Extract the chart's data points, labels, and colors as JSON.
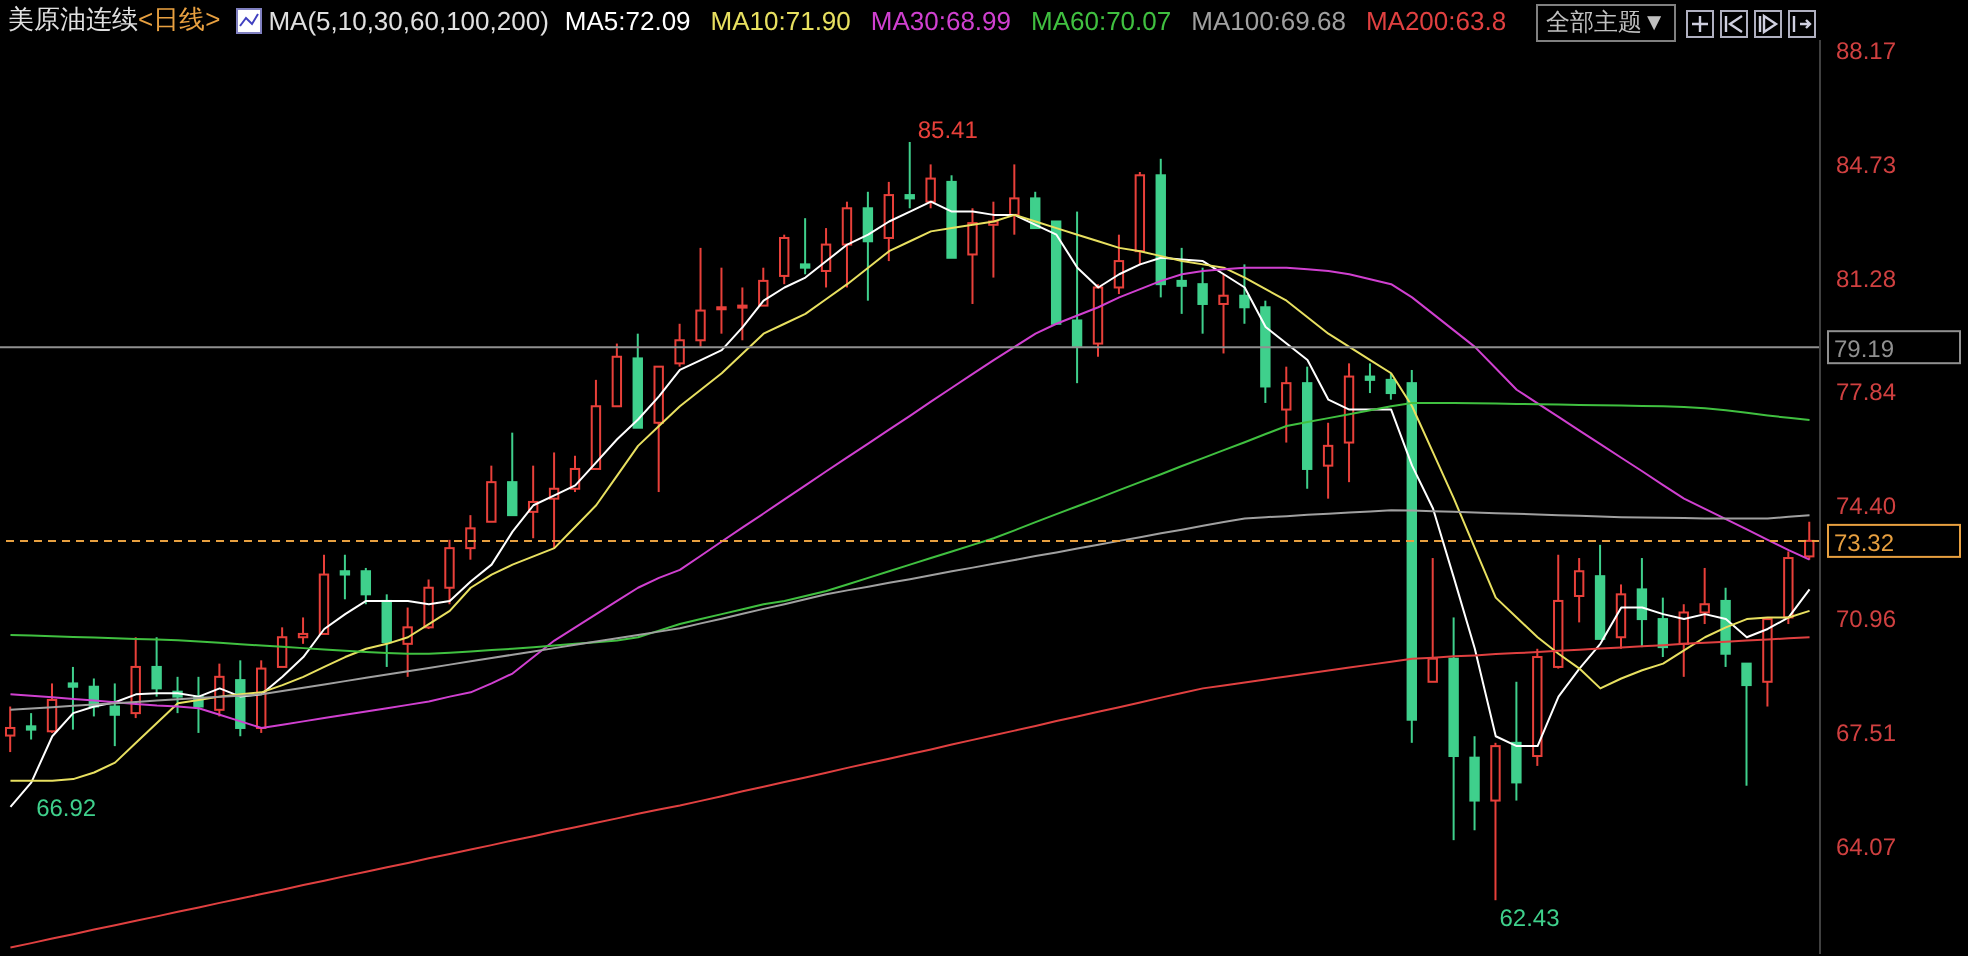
{
  "chart_data": {
    "type": "candlestick",
    "title": "美原油连续",
    "subtitle": "<日线>",
    "legend": "top",
    "grid": false,
    "tick_labels": "y",
    "categories": [
      null,
      null,
      null,
      null,
      null,
      null,
      null,
      null,
      null,
      null,
      null,
      null,
      null,
      null,
      null,
      null,
      null,
      null,
      null,
      null,
      null,
      null,
      null,
      null,
      null,
      null,
      null,
      null,
      null,
      null,
      null,
      null,
      null,
      null,
      null,
      null,
      null,
      null,
      null,
      null,
      null,
      null,
      null,
      null,
      null,
      null,
      null,
      null,
      null,
      null,
      null,
      null,
      null,
      null,
      null,
      null,
      null,
      null,
      null,
      null,
      null,
      null,
      null,
      null,
      null,
      null,
      null,
      null,
      null,
      null,
      null,
      null,
      null,
      null,
      null,
      null,
      null,
      null,
      null,
      null,
      null,
      null,
      null,
      null,
      null,
      null,
      null
    ],
    "ohlc": [
      [
        67.42,
        68.3,
        66.92,
        67.65
      ],
      [
        67.7,
        68.1,
        67.3,
        67.6
      ],
      [
        67.55,
        69.0,
        67.5,
        68.5
      ],
      [
        69.0,
        69.5,
        67.6,
        68.9
      ],
      [
        68.9,
        69.15,
        68.0,
        68.3
      ],
      [
        68.3,
        69.0,
        67.1,
        68.05
      ],
      [
        68.1,
        70.4,
        67.95,
        69.5
      ],
      [
        69.5,
        70.4,
        68.6,
        68.85
      ],
      [
        68.75,
        69.2,
        68.1,
        68.6
      ],
      [
        68.6,
        69.2,
        67.5,
        68.3
      ],
      [
        68.2,
        69.6,
        68.0,
        69.2
      ],
      [
        69.1,
        69.7,
        67.4,
        67.65
      ],
      [
        67.65,
        69.7,
        67.5,
        69.45
      ],
      [
        69.5,
        70.7,
        69.5,
        70.4
      ],
      [
        70.4,
        71.0,
        70.2,
        70.5
      ],
      [
        70.5,
        72.9,
        70.5,
        72.3
      ],
      [
        72.4,
        72.9,
        71.55,
        72.3
      ],
      [
        72.4,
        72.5,
        71.4,
        71.7
      ],
      [
        71.5,
        71.7,
        69.5,
        70.25
      ],
      [
        70.2,
        71.3,
        69.2,
        70.7
      ],
      [
        70.7,
        72.15,
        70.65,
        71.9
      ],
      [
        71.9,
        73.35,
        71.4,
        73.1
      ],
      [
        73.1,
        74.1,
        72.75,
        73.7
      ],
      [
        73.9,
        75.6,
        73.9,
        75.1
      ],
      [
        75.1,
        76.6,
        74.1,
        74.1
      ],
      [
        74.2,
        75.6,
        73.4,
        74.5
      ],
      [
        74.6,
        76.0,
        73.1,
        74.9
      ],
      [
        74.9,
        75.9,
        74.8,
        75.5
      ],
      [
        75.5,
        78.2,
        75.5,
        77.4
      ],
      [
        77.4,
        79.3,
        77.4,
        78.9
      ],
      [
        78.85,
        79.6,
        76.75,
        76.75
      ],
      [
        76.9,
        78.6,
        74.8,
        78.6
      ],
      [
        78.7,
        79.9,
        78.6,
        79.4
      ],
      [
        79.4,
        82.2,
        79.2,
        80.3
      ],
      [
        80.35,
        81.6,
        79.6,
        80.4
      ],
      [
        80.4,
        81.0,
        79.4,
        80.45
      ],
      [
        80.45,
        81.6,
        80.45,
        81.2
      ],
      [
        81.35,
        82.6,
        81.1,
        82.5
      ],
      [
        81.7,
        83.1,
        81.4,
        81.6
      ],
      [
        81.5,
        82.8,
        81.0,
        82.3
      ],
      [
        82.3,
        83.6,
        81.0,
        83.4
      ],
      [
        83.4,
        83.9,
        80.6,
        82.4
      ],
      [
        82.5,
        84.2,
        81.8,
        83.8
      ],
      [
        83.8,
        85.41,
        83.4,
        83.7
      ],
      [
        83.6,
        84.73,
        83.4,
        84.3
      ],
      [
        84.2,
        84.4,
        81.9,
        81.9
      ],
      [
        82.0,
        83.4,
        80.5,
        82.95
      ],
      [
        82.9,
        83.6,
        81.3,
        83.0
      ],
      [
        83.2,
        84.73,
        82.6,
        83.7
      ],
      [
        83.7,
        83.9,
        82.8,
        82.8
      ],
      [
        83.0,
        83.0,
        79.9,
        79.9
      ],
      [
        80.0,
        83.3,
        78.1,
        79.2
      ],
      [
        79.3,
        81.1,
        78.9,
        81.0
      ],
      [
        81.0,
        82.6,
        80.8,
        81.8
      ],
      [
        82.1,
        84.5,
        81.7,
        84.4
      ],
      [
        84.4,
        84.9,
        80.7,
        81.1
      ],
      [
        81.2,
        82.2,
        80.2,
        81.05
      ],
      [
        81.1,
        81.6,
        79.6,
        80.5
      ],
      [
        80.5,
        81.4,
        79.0,
        80.75
      ],
      [
        80.75,
        81.7,
        79.9,
        80.4
      ],
      [
        80.4,
        80.6,
        77.5,
        78.0
      ],
      [
        77.3,
        78.6,
        76.3,
        78.1
      ],
      [
        78.1,
        78.6,
        74.9,
        75.5
      ],
      [
        75.6,
        76.9,
        74.6,
        76.2
      ],
      [
        76.3,
        78.7,
        75.1,
        78.3
      ],
      [
        78.3,
        78.7,
        77.8,
        78.2
      ],
      [
        78.2,
        78.4,
        77.6,
        77.8
      ],
      [
        78.1,
        78.5,
        67.2,
        67.9
      ],
      [
        69.05,
        72.8,
        69.05,
        69.75
      ],
      [
        69.75,
        71.0,
        64.25,
        66.8
      ],
      [
        66.75,
        67.4,
        64.55,
        65.45
      ],
      [
        65.45,
        67.2,
        62.43,
        67.1
      ],
      [
        67.2,
        69.05,
        65.45,
        66.0
      ],
      [
        66.8,
        70.05,
        66.5,
        69.8
      ],
      [
        69.5,
        72.9,
        69.45,
        71.5
      ],
      [
        71.65,
        72.8,
        70.85,
        72.4
      ],
      [
        72.25,
        73.2,
        70.35,
        70.35
      ],
      [
        70.4,
        72.0,
        70.05,
        71.7
      ],
      [
        71.85,
        72.8,
        70.1,
        70.95
      ],
      [
        70.95,
        71.6,
        69.8,
        70.1
      ],
      [
        70.2,
        71.4,
        69.2,
        71.15
      ],
      [
        71.15,
        72.5,
        70.8,
        71.4
      ],
      [
        71.5,
        71.9,
        69.5,
        69.9
      ],
      [
        69.6,
        69.6,
        65.9,
        68.95
      ],
      [
        69.05,
        71.0,
        68.3,
        70.95
      ],
      [
        71.0,
        73.0,
        70.8,
        72.8
      ],
      [
        72.85,
        73.9,
        72.75,
        73.32
      ]
    ],
    "series": [
      {
        "name": "MA5:72.09",
        "type": "line",
        "color": "#ffffff",
        "values": [
          65.26,
          66.0,
          67.4,
          68.1,
          68.3,
          68.43,
          68.67,
          68.7,
          68.7,
          68.6,
          68.85,
          68.6,
          68.67,
          69.2,
          69.8,
          70.65,
          71.1,
          71.5,
          71.5,
          71.5,
          71.4,
          71.5,
          72.09,
          72.6,
          73.6,
          74.4,
          74.7,
          75.0,
          75.7,
          76.4,
          77.0,
          77.7,
          78.5,
          78.8,
          79.1,
          79.8,
          80.6,
          81.0,
          81.3,
          81.8,
          82.3,
          82.6,
          83.0,
          83.3,
          83.6,
          83.3,
          83.3,
          83.2,
          83.2,
          82.9,
          82.6,
          81.6,
          81.0,
          81.4,
          81.7,
          81.9,
          81.85,
          81.8,
          81.4,
          81.0,
          79.8,
          79.3,
          78.8,
          77.6,
          77.3,
          77.3,
          77.3,
          75.6,
          74.3,
          72.2,
          70.05,
          67.4,
          67.1,
          67.1,
          68.6,
          69.45,
          70.2,
          71.3,
          71.3,
          71.1,
          70.95,
          71.1,
          70.95,
          70.4,
          70.65,
          71.0,
          71.85
        ]
      },
      {
        "name": "MA10:71.90",
        "type": "line",
        "color": "#e8e060",
        "values": [
          66.05,
          66.05,
          66.05,
          66.1,
          66.3,
          66.6,
          67.2,
          67.8,
          68.4,
          68.5,
          68.6,
          68.67,
          68.73,
          68.95,
          69.2,
          69.5,
          69.8,
          70.05,
          70.2,
          70.4,
          70.8,
          71.2,
          71.9,
          72.3,
          72.6,
          72.85,
          73.1,
          73.75,
          74.4,
          75.3,
          76.2,
          76.8,
          77.4,
          77.9,
          78.4,
          79.0,
          79.6,
          79.9,
          80.2,
          80.65,
          81.1,
          81.6,
          82.1,
          82.4,
          82.7,
          82.8,
          82.9,
          83.0,
          83.2,
          83.0,
          82.8,
          82.6,
          82.4,
          82.2,
          82.1,
          81.95,
          81.8,
          81.7,
          81.6,
          81.3,
          80.95,
          80.6,
          80.1,
          79.6,
          79.2,
          78.8,
          78.4,
          77.4,
          76.0,
          74.6,
          73.1,
          71.6,
          71.0,
          70.4,
          69.9,
          69.45,
          68.85,
          69.15,
          69.4,
          69.6,
          70.0,
          70.4,
          70.7,
          70.95,
          71.0,
          71.0,
          71.2
        ]
      },
      {
        "name": "MA30:68.99",
        "type": "line",
        "color": "#d040d0",
        "values": [
          68.67,
          68.63,
          68.58,
          68.53,
          68.48,
          68.43,
          68.38,
          68.33,
          68.3,
          68.25,
          68.05,
          67.85,
          67.65,
          67.75,
          67.85,
          67.95,
          68.05,
          68.15,
          68.25,
          68.35,
          68.45,
          68.6,
          68.73,
          69.0,
          69.3,
          69.8,
          70.3,
          70.7,
          71.1,
          71.5,
          71.9,
          72.2,
          72.44,
          72.87,
          73.3,
          73.73,
          74.15,
          74.58,
          75.0,
          75.43,
          75.85,
          76.27,
          76.69,
          77.11,
          77.54,
          77.96,
          78.38,
          78.8,
          79.2,
          79.6,
          79.9,
          80.15,
          80.4,
          80.7,
          80.95,
          81.2,
          81.4,
          81.5,
          81.55,
          81.6,
          81.6,
          81.6,
          81.55,
          81.5,
          81.4,
          81.25,
          81.1,
          80.7,
          80.2,
          79.7,
          79.2,
          78.55,
          77.9,
          77.49,
          77.08,
          76.66,
          76.25,
          75.84,
          75.43,
          75.01,
          74.6,
          74.29,
          73.98,
          73.67,
          73.35,
          73.04,
          72.75
        ]
      },
      {
        "name": "MA60:70.07",
        "type": "line",
        "color": "#40c040",
        "values": [
          70.47,
          70.45,
          70.43,
          70.41,
          70.39,
          70.37,
          70.35,
          70.33,
          70.31,
          70.27,
          70.23,
          70.19,
          70.15,
          70.11,
          70.07,
          70.03,
          69.99,
          69.95,
          69.92,
          69.9,
          69.9,
          69.93,
          69.97,
          70.01,
          70.05,
          70.1,
          70.15,
          70.2,
          70.25,
          70.3,
          70.4,
          70.6,
          70.8,
          70.95,
          71.1,
          71.25,
          71.4,
          71.5,
          71.65,
          71.8,
          72.0,
          72.2,
          72.4,
          72.6,
          72.8,
          73.0,
          73.2,
          73.4,
          73.64,
          73.89,
          74.13,
          74.37,
          74.61,
          74.86,
          75.1,
          75.34,
          75.59,
          75.83,
          76.07,
          76.31,
          76.56,
          76.8,
          76.92,
          77.04,
          77.16,
          77.28,
          77.4,
          77.5,
          77.5,
          77.5,
          77.49,
          77.48,
          77.47,
          77.46,
          77.45,
          77.44,
          77.43,
          77.42,
          77.41,
          77.4,
          77.38,
          77.34,
          77.28,
          77.2,
          77.12,
          77.05,
          76.98
        ]
      },
      {
        "name": "MA100:69.68",
        "type": "line",
        "color": "#a0a0a0",
        "values": [
          68.2,
          68.24,
          68.28,
          68.32,
          68.36,
          68.4,
          68.44,
          68.48,
          68.52,
          68.56,
          68.6,
          68.63,
          68.67,
          68.77,
          68.87,
          68.97,
          69.07,
          69.17,
          69.27,
          69.37,
          69.47,
          69.57,
          69.67,
          69.77,
          69.87,
          69.97,
          70.07,
          70.17,
          70.27,
          70.37,
          70.47,
          70.57,
          70.67,
          70.82,
          70.96,
          71.11,
          71.26,
          71.4,
          71.55,
          71.7,
          71.82,
          71.93,
          72.05,
          72.16,
          72.28,
          72.4,
          72.51,
          72.63,
          72.74,
          72.86,
          72.97,
          73.09,
          73.2,
          73.32,
          73.43,
          73.55,
          73.66,
          73.78,
          73.89,
          74.0,
          74.04,
          74.07,
          74.11,
          74.14,
          74.18,
          74.21,
          74.25,
          74.24,
          74.22,
          74.2,
          74.18,
          74.16,
          74.14,
          74.12,
          74.1,
          74.08,
          74.06,
          74.04,
          74.03,
          74.02,
          74.01,
          74.0,
          74.0,
          74.0,
          74.0,
          74.05,
          74.1
        ]
      },
      {
        "name": "MA200:63.8",
        "type": "line",
        "color": "#e04040",
        "values": [
          61.0,
          61.13,
          61.27,
          61.4,
          61.54,
          61.67,
          61.81,
          61.94,
          62.08,
          62.21,
          62.35,
          62.48,
          62.62,
          62.75,
          62.89,
          63.02,
          63.16,
          63.29,
          63.43,
          63.56,
          63.7,
          63.83,
          63.97,
          64.1,
          64.24,
          64.37,
          64.51,
          64.64,
          64.78,
          64.91,
          65.05,
          65.18,
          65.3,
          65.44,
          65.58,
          65.73,
          65.87,
          66.01,
          66.15,
          66.29,
          66.44,
          66.58,
          66.72,
          66.86,
          67.0,
          67.15,
          67.29,
          67.43,
          67.57,
          67.71,
          67.86,
          68.0,
          68.14,
          68.28,
          68.42,
          68.57,
          68.71,
          68.85,
          68.94,
          69.03,
          69.12,
          69.21,
          69.3,
          69.39,
          69.48,
          69.57,
          69.66,
          69.75,
          69.78,
          69.82,
          69.85,
          69.89,
          69.92,
          69.95,
          69.99,
          70.02,
          70.06,
          70.09,
          70.13,
          70.16,
          70.2,
          70.23,
          70.26,
          70.3,
          70.33,
          70.37,
          70.4
        ]
      }
    ],
    "ylim": [
      60.8,
      88.5
    ],
    "yticks": [
      88.17,
      84.73,
      81.28,
      77.84,
      {
        "value": 74.4,
        "label": "74.40"
      },
      70.96,
      67.51,
      64.07
    ],
    "ref_lines": [
      {
        "axis": "y",
        "value": 79.19,
        "label": "79.19",
        "color": "#909090",
        "line_style": "solid"
      },
      {
        "axis": "y",
        "value": 73.32,
        "label": "73.32",
        "color": "#e8a040",
        "line_style": "dashed"
      }
    ],
    "annotations": [
      "85.41",
      "62.43",
      "66.92",
      "MA(5,10,30,60,100,200)",
      "全部主题▼"
    ]
  }
}
